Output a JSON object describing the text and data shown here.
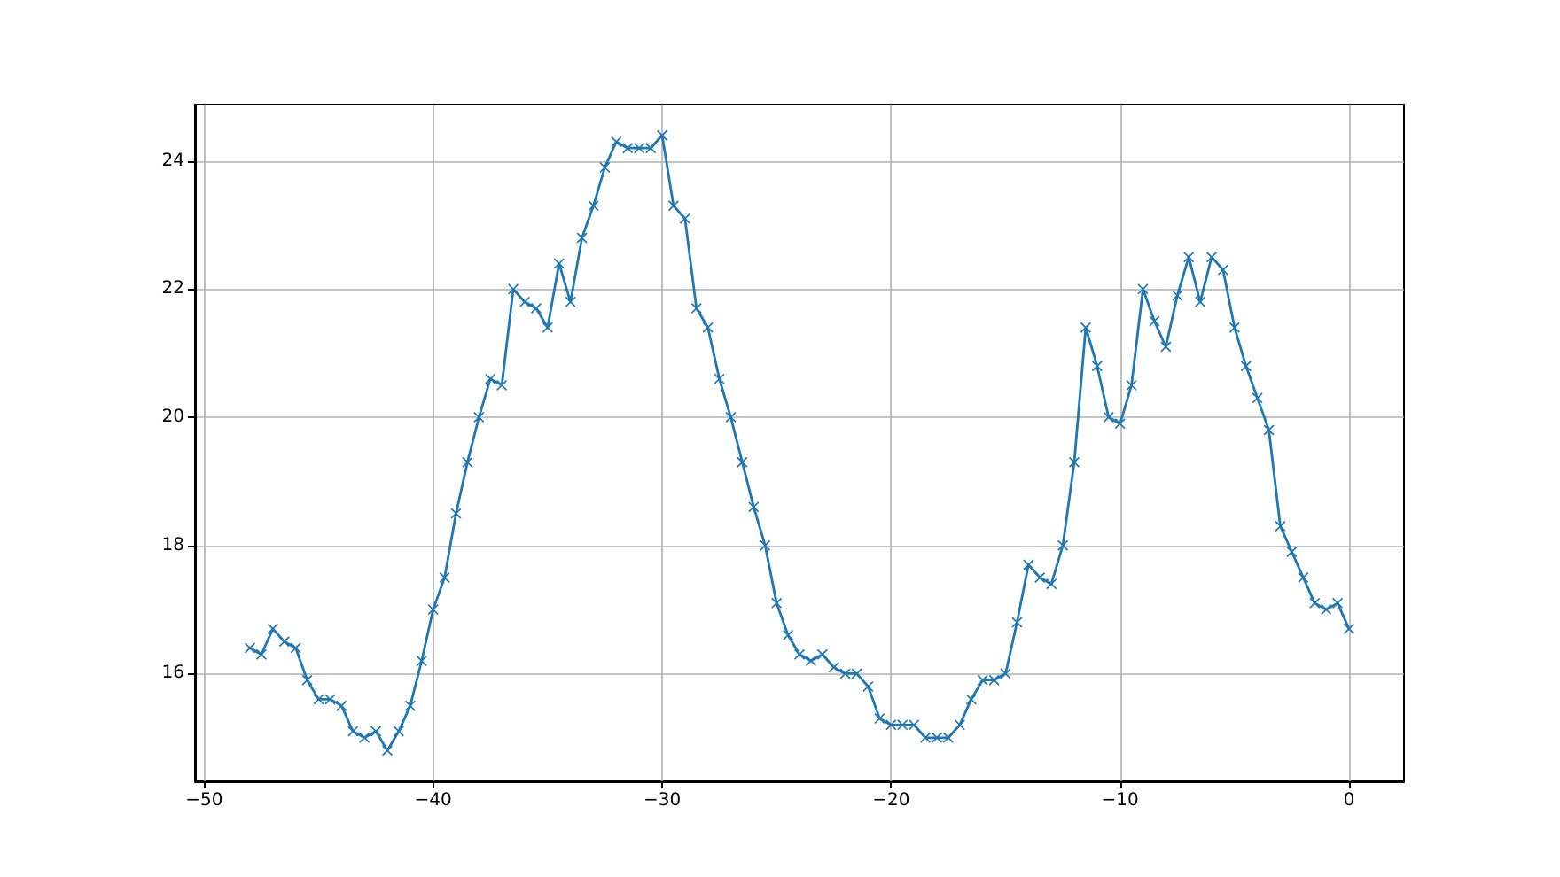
{
  "chart_data": {
    "type": "line",
    "x": [
      -48,
      -47.5,
      -47,
      -46.5,
      -46,
      -45.5,
      -45,
      -44.5,
      -44,
      -43.5,
      -43,
      -42.5,
      -42,
      -41.5,
      -41,
      -40.5,
      -40,
      -39.5,
      -39,
      -38.5,
      -38,
      -37.5,
      -37,
      -36.5,
      -36,
      -35.5,
      -35,
      -34.5,
      -34,
      -33.5,
      -33,
      -32.5,
      -32,
      -31.5,
      -31,
      -30.5,
      -30,
      -29.5,
      -29,
      -28.5,
      -28,
      -27.5,
      -27,
      -26.5,
      -26,
      -25.5,
      -25,
      -24.5,
      -24,
      -23.5,
      -23,
      -22.5,
      -22,
      -21.5,
      -21,
      -20.5,
      -20,
      -19.5,
      -19,
      -18.5,
      -18,
      -17.5,
      -17,
      -16.5,
      -16,
      -15.5,
      -15,
      -14.5,
      -14,
      -13.5,
      -13,
      -12.5,
      -12,
      -11.5,
      -11,
      -10.5,
      -10,
      -9.5,
      -9,
      -8.5,
      -8,
      -7.5,
      -7,
      -6.5,
      -6,
      -5.5,
      -5,
      -4.5,
      -4,
      -3.5,
      -3,
      -2.5,
      -2,
      -1.5,
      -1,
      -0.5,
      0
    ],
    "series": [
      {
        "color": "#1f77b4",
        "values": [
          16.4,
          16.3,
          16.7,
          16.5,
          16.4,
          15.9,
          15.6,
          15.6,
          15.5,
          15.1,
          15.0,
          15.1,
          14.8,
          15.1,
          15.5,
          16.2,
          17.0,
          17.5,
          18.5,
          19.3,
          20.0,
          20.6,
          20.5,
          22.0,
          21.8,
          21.7,
          21.4,
          22.4,
          21.8,
          22.8,
          23.3,
          23.9,
          24.3,
          24.2,
          24.2,
          24.2,
          24.4,
          23.3,
          23.1,
          21.7,
          21.4,
          20.6,
          20.0,
          19.3,
          18.6,
          18.0,
          17.1,
          16.6,
          16.3,
          16.2,
          16.3,
          16.1,
          16.0,
          16.0,
          15.8,
          15.3,
          15.2,
          15.2,
          15.2,
          15.0,
          15.0,
          15.0,
          15.2,
          15.6,
          15.9,
          15.9,
          16.0,
          16.8,
          17.7,
          17.5,
          17.4,
          18.0,
          19.3,
          21.4,
          20.8,
          20.0,
          19.9,
          20.5,
          22.0,
          21.5,
          21.1,
          21.9,
          22.5,
          21.8,
          22.5,
          22.3,
          21.4,
          20.8,
          20.3,
          19.8,
          18.3,
          17.9,
          17.5,
          17.1,
          17.0,
          17.1,
          16.7
        ]
      }
    ],
    "xlim": [
      -50.4,
      2.4
    ],
    "xticks": [
      -50,
      -40,
      -30,
      -20,
      -10,
      0
    ],
    "ylim": [
      14.32,
      24.88
    ],
    "yticks": [
      16,
      18,
      20,
      22,
      24
    ],
    "grid": true,
    "marker": "cross",
    "line_style": "solid"
  }
}
